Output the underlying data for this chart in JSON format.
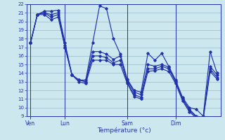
{
  "xlabel": "Température (°c)",
  "bg_color": "#cce8ee",
  "line_color": "#2233aa",
  "grid_color": "#99bbcc",
  "ylim": [
    9,
    22
  ],
  "yticks": [
    9,
    10,
    11,
    12,
    13,
    14,
    15,
    16,
    17,
    18,
    19,
    20,
    21,
    22
  ],
  "day_labels": [
    "Ven",
    "Lun",
    "Sam",
    "Dim"
  ],
  "day_positions": [
    0,
    5,
    14,
    21
  ],
  "num_points": 28,
  "line1": [
    17.5,
    20.8,
    21.2,
    21.2,
    21.3,
    17.5,
    13.8,
    13.2,
    13.2,
    17.5,
    21.8,
    21.5,
    18.0,
    16.2,
    13.3,
    12.0,
    11.8,
    16.3,
    15.5,
    16.3,
    14.8,
    13.2,
    11.2,
    10.0,
    9.8,
    9.0,
    16.5,
    14.0
  ],
  "line2": [
    17.5,
    20.8,
    21.0,
    20.8,
    21.0,
    17.2,
    13.8,
    13.2,
    13.0,
    16.5,
    16.5,
    16.2,
    15.6,
    16.0,
    13.2,
    11.8,
    11.5,
    15.0,
    14.8,
    15.0,
    14.7,
    13.1,
    11.0,
    9.8,
    9.0,
    8.9,
    14.8,
    13.8
  ],
  "line3": [
    17.5,
    20.8,
    21.0,
    20.5,
    20.8,
    17.0,
    13.8,
    13.2,
    13.0,
    16.0,
    16.0,
    15.8,
    15.2,
    15.5,
    13.0,
    11.5,
    11.2,
    14.5,
    14.5,
    14.8,
    14.5,
    13.0,
    11.0,
    9.7,
    8.9,
    8.8,
    14.5,
    13.5
  ],
  "line4": [
    17.5,
    20.8,
    20.8,
    20.2,
    20.5,
    17.0,
    13.8,
    13.0,
    12.8,
    15.5,
    15.5,
    15.5,
    15.0,
    15.0,
    12.8,
    11.3,
    11.0,
    14.2,
    14.3,
    14.5,
    14.2,
    12.8,
    10.8,
    9.5,
    8.8,
    8.7,
    14.2,
    13.3
  ]
}
